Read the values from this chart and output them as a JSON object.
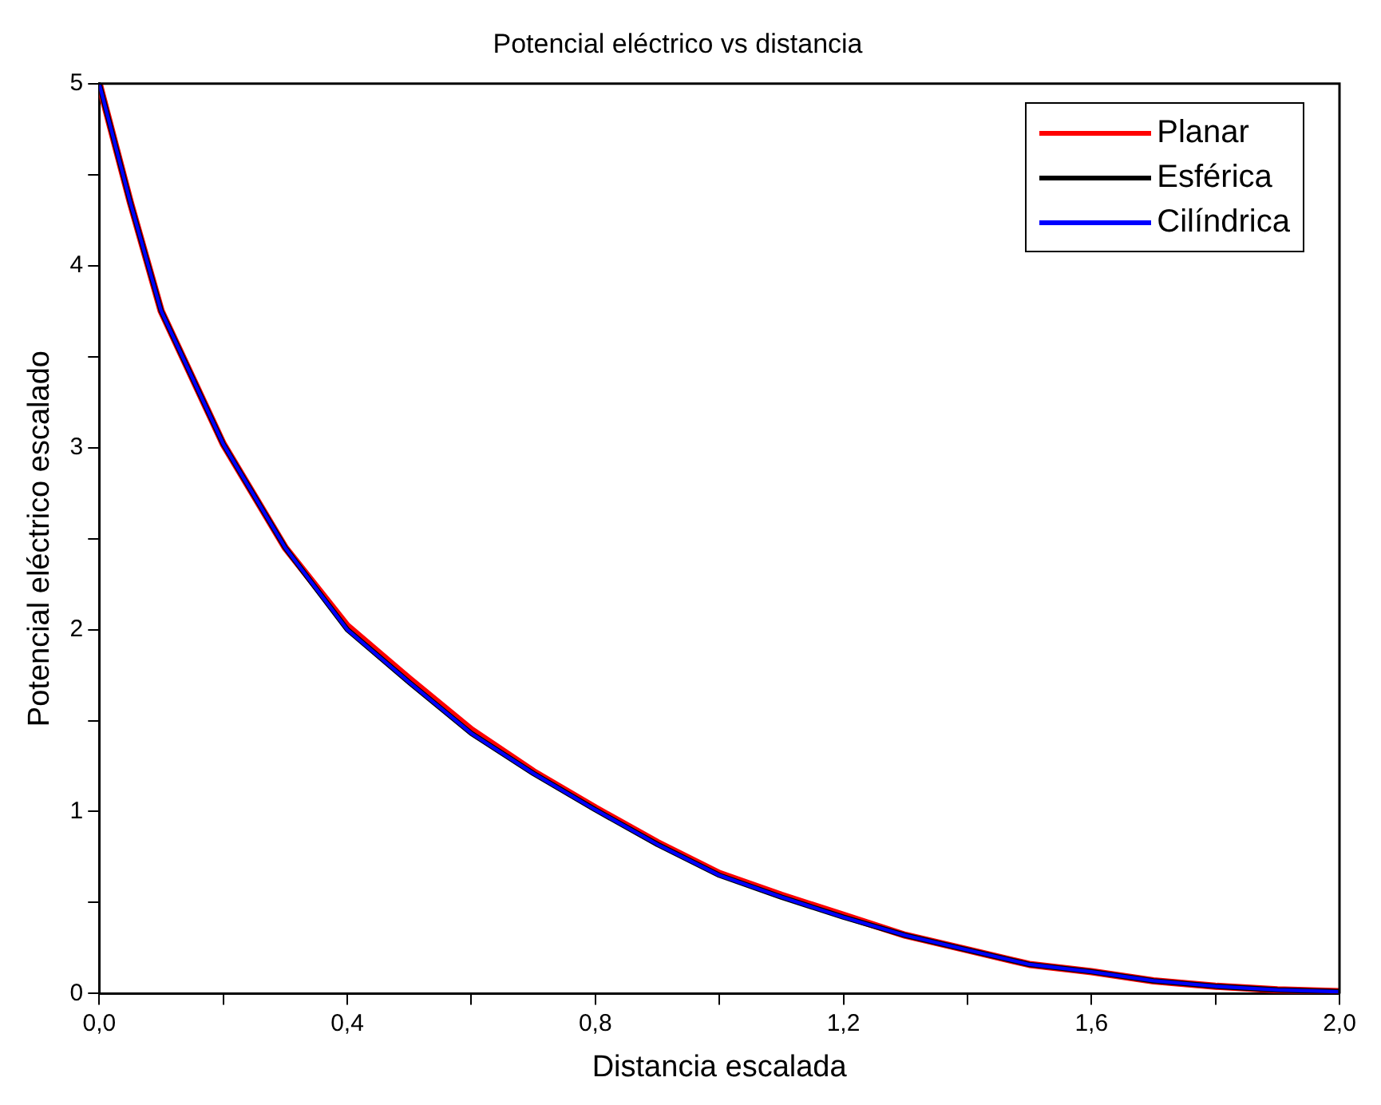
{
  "chart_data": {
    "type": "line",
    "title": "Potencial eléctrico vs distancia",
    "xlabel": "Distancia escalada",
    "ylabel": "Potencial eléctrico escalado",
    "x": [
      0,
      0.05,
      0.1,
      0.2,
      0.3,
      0.4,
      0.5,
      0.6,
      0.7,
      0.8,
      0.9,
      1.0,
      1.1,
      1.2,
      1.3,
      1.4,
      1.5,
      1.6,
      1.7,
      1.8,
      1.9,
      2.0
    ],
    "series": [
      {
        "name": "Planar",
        "color": "#ff0000",
        "values": [
          5,
          4.35,
          3.75,
          3.02,
          2.45,
          2.02,
          1.73,
          1.45,
          1.22,
          1.02,
          0.83,
          0.66,
          0.54,
          0.43,
          0.32,
          0.24,
          0.16,
          0.12,
          0.07,
          0.04,
          0.02,
          0.01
        ]
      },
      {
        "name": "Esférica",
        "color": "#000000",
        "values": [
          5,
          4.35,
          3.75,
          3.02,
          2.45,
          2.0,
          1.71,
          1.43,
          1.21,
          1.01,
          0.82,
          0.65,
          0.53,
          0.42,
          0.32,
          0.24,
          0.16,
          0.12,
          0.07,
          0.04,
          0.02,
          0.01
        ]
      },
      {
        "name": "Cilíndrica",
        "color": "#0000ff",
        "values": [
          5,
          4.35,
          3.75,
          3.02,
          2.45,
          2.0,
          1.71,
          1.43,
          1.21,
          1.01,
          0.82,
          0.65,
          0.53,
          0.42,
          0.32,
          0.24,
          0.16,
          0.12,
          0.07,
          0.04,
          0.02,
          0.01
        ]
      }
    ],
    "xlim": [
      0,
      2
    ],
    "xticks": [
      {
        "value": 0,
        "label": "0,0"
      },
      {
        "value": 0.2,
        "label": null
      },
      {
        "value": 0.4,
        "label": "0,4"
      },
      {
        "value": 0.6,
        "label": null
      },
      {
        "value": 0.8,
        "label": "0,8"
      },
      {
        "value": 1.0,
        "label": null
      },
      {
        "value": 1.2,
        "label": "1,2"
      },
      {
        "value": 1.4,
        "label": null
      },
      {
        "value": 1.6,
        "label": "1,6"
      },
      {
        "value": 1.8,
        "label": null
      },
      {
        "value": 2.0,
        "label": "2,0"
      }
    ],
    "ylim": [
      0,
      5
    ],
    "yticks": [
      0,
      {
        "value": 0.5,
        "label": null
      },
      1,
      {
        "value": 1.5,
        "label": null
      },
      2,
      {
        "value": 2.5,
        "label": null
      },
      3,
      {
        "value": 3.5,
        "label": null
      },
      4,
      {
        "value": 4.5,
        "label": null
      },
      5
    ],
    "grid": false,
    "legend": "top right",
    "marker": "none",
    "line_style": "solid"
  }
}
